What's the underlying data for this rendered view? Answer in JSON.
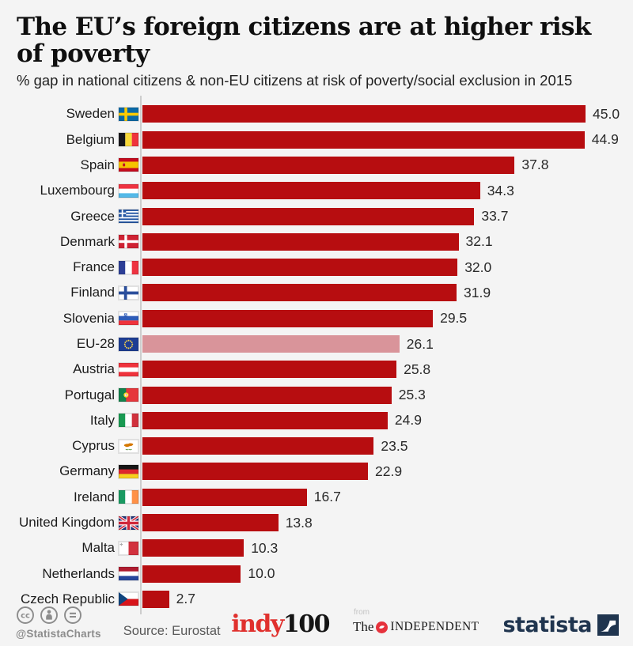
{
  "header": {
    "title": "The EU’s foreign citizens are at higher risk of poverty",
    "subtitle": "% gap in national citizens & non-EU citizens at risk of poverty/social exclusion in 2015"
  },
  "chart_data": {
    "type": "bar",
    "orientation": "horizontal",
    "title": "The EU’s foreign citizens are at higher risk of poverty",
    "subtitle": "% gap in national citizens & non-EU citizens at risk of poverty/social exclusion in 2015",
    "unit": "% gap",
    "xlim": [
      0,
      45
    ],
    "grid": false,
    "value_labels_shown": true,
    "bar_color": "#b70d10",
    "highlight_bar_color": "#d9949a",
    "highlight_category": "EU-28",
    "categories": [
      "Sweden",
      "Belgium",
      "Spain",
      "Luxembourg",
      "Greece",
      "Denmark",
      "France",
      "Finland",
      "Slovenia",
      "EU-28",
      "Austria",
      "Portugal",
      "Italy",
      "Cyprus",
      "Germany",
      "Ireland",
      "United Kingdom",
      "Malta",
      "Netherlands",
      "Czech Republic"
    ],
    "values": [
      45.0,
      44.9,
      37.8,
      34.3,
      33.7,
      32.1,
      32.0,
      31.9,
      29.5,
      26.1,
      25.8,
      25.3,
      24.9,
      23.5,
      22.9,
      16.7,
      13.8,
      10.3,
      10.0,
      2.7
    ],
    "flags": [
      "se",
      "be",
      "es",
      "lu",
      "gr",
      "dk",
      "fr",
      "fi",
      "si",
      "eu",
      "at",
      "pt",
      "it",
      "cy",
      "de",
      "ie",
      "gb",
      "mt",
      "nl",
      "cz"
    ]
  },
  "footer": {
    "handle": "@StatistaCharts",
    "source": "Source: Eurostat",
    "license_icons": [
      "cc-icon",
      "attribution-icon",
      "no-derivatives-icon"
    ],
    "indy100": {
      "part1": "indy",
      "part2": "100"
    },
    "independent": {
      "from": "from",
      "the": "The",
      "name": "INDEPENDENT"
    },
    "statista": "statista"
  },
  "colors": {
    "background": "#f4f4f4",
    "bar": "#b70d10",
    "highlight_bar": "#d9949a",
    "axis_line": "#cdcdcd",
    "title_text": "#0f0f0f",
    "indy_red": "#e0312e",
    "independent_red": "#e6323c",
    "statista_navy": "#20354f",
    "footer_gray": "#8c8c8c"
  }
}
